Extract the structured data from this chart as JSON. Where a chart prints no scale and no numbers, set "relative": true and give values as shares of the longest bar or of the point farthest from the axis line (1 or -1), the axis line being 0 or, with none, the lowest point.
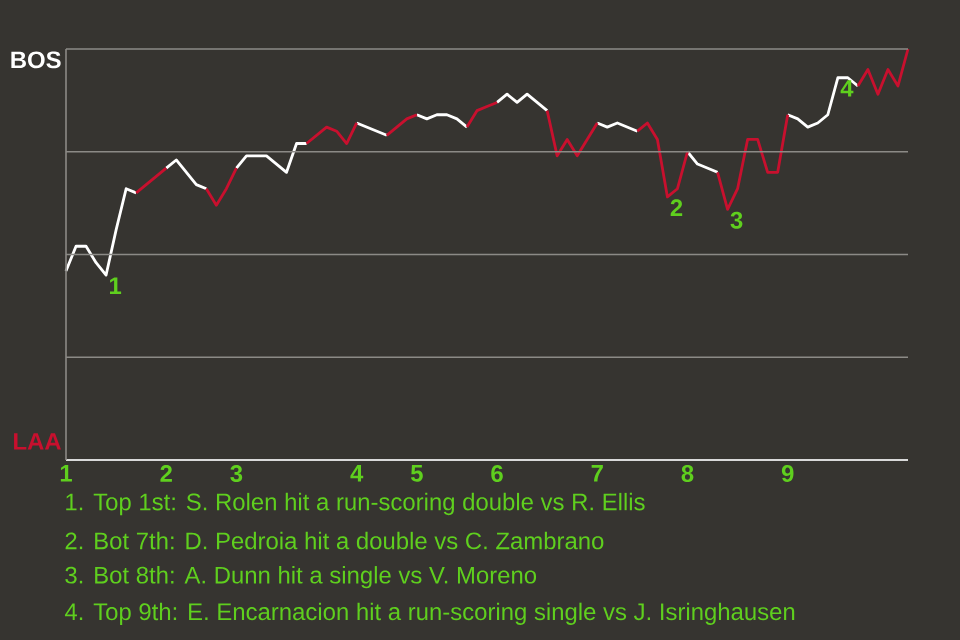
{
  "chart_data": {
    "type": "line",
    "relative": true,
    "annotations": [
      "BOS",
      "LAA",
      {
        "text": "1",
        "y": 0.45
      },
      {
        "text": "2",
        "y": 0.64
      },
      {
        "text": "3",
        "y": 0.61
      },
      {
        "text": "4",
        "y": 0.93
      },
      "1. Top 1st: S. Rolen hit a run-scoring double vs R. Ellis",
      "2. Bot 7th: D. Pedroia hit a double vs C. Zambrano",
      "3. Bot 8th: A. Dunn hit a single vs V. Moreno",
      "4. Top 9th: E. Encarnacion hit a run-scoring single vs J. Isringhausen"
    ],
    "categories": [
      "1",
      null,
      null,
      null,
      null,
      null,
      null,
      null,
      null,
      null,
      "2",
      null,
      null,
      null,
      null,
      null,
      null,
      "3",
      null,
      null,
      null,
      null,
      null,
      null,
      null,
      null,
      null,
      null,
      null,
      "4",
      null,
      null,
      null,
      null,
      null,
      "5",
      null,
      null,
      null,
      null,
      null,
      null,
      null,
      "6",
      null,
      null,
      null,
      null,
      null,
      null,
      null,
      null,
      null,
      "7",
      null,
      null,
      null,
      null,
      null,
      null,
      null,
      null,
      "8",
      null,
      null,
      null,
      null,
      null,
      null,
      null,
      null,
      null,
      "9",
      null,
      null,
      null,
      null,
      null,
      null,
      null,
      null,
      null,
      null,
      null,
      null
    ],
    "series": [
      {
        "color": "#ffffff",
        "values": [
          0.46,
          0.52,
          0.52,
          0.48,
          0.45,
          0.56,
          0.66,
          0.65,
          null,
          null,
          0.71,
          0.73,
          0.7,
          0.67,
          0.66,
          null,
          null,
          0.71,
          0.74,
          0.74,
          0.74,
          0.72,
          0.7,
          0.77,
          0.77,
          null,
          null,
          null,
          null,
          0.82,
          0.81,
          0.8,
          0.79,
          null,
          null,
          0.84,
          0.83,
          0.84,
          0.84,
          0.83,
          0.81,
          null,
          null,
          0.87,
          0.89,
          0.87,
          0.89,
          0.87,
          0.85,
          null,
          null,
          null,
          null,
          0.82,
          0.81,
          0.82,
          0.81,
          0.8,
          null,
          null,
          null,
          null,
          0.75,
          0.72,
          0.71,
          0.7,
          null,
          null,
          null,
          null,
          null,
          null,
          0.84,
          0.83,
          0.81,
          0.82,
          0.84,
          0.93,
          0.93,
          0.91,
          null,
          null,
          null,
          null,
          null
        ]
      },
      {
        "color": "#c8102e",
        "values": [
          null,
          null,
          null,
          null,
          null,
          null,
          null,
          0.65,
          0.67,
          0.69,
          0.71,
          null,
          null,
          null,
          0.66,
          0.62,
          0.66,
          0.71,
          null,
          null,
          null,
          null,
          null,
          null,
          0.77,
          0.79,
          0.81,
          0.8,
          0.77,
          0.82,
          null,
          null,
          0.79,
          0.81,
          0.83,
          0.84,
          null,
          null,
          null,
          null,
          0.81,
          0.85,
          0.86,
          0.87,
          null,
          null,
          null,
          null,
          0.85,
          0.74,
          0.78,
          0.74,
          0.78,
          0.82,
          null,
          null,
          null,
          0.8,
          0.82,
          0.78,
          0.64,
          0.66,
          0.75,
          null,
          null,
          0.7,
          0.61,
          0.66,
          0.78,
          0.78,
          0.7,
          0.7,
          0.84,
          null,
          null,
          null,
          null,
          null,
          null,
          0.91,
          0.95,
          0.89,
          0.95,
          0.91,
          1
        ]
      }
    ],
    "grid": "y"
  }
}
